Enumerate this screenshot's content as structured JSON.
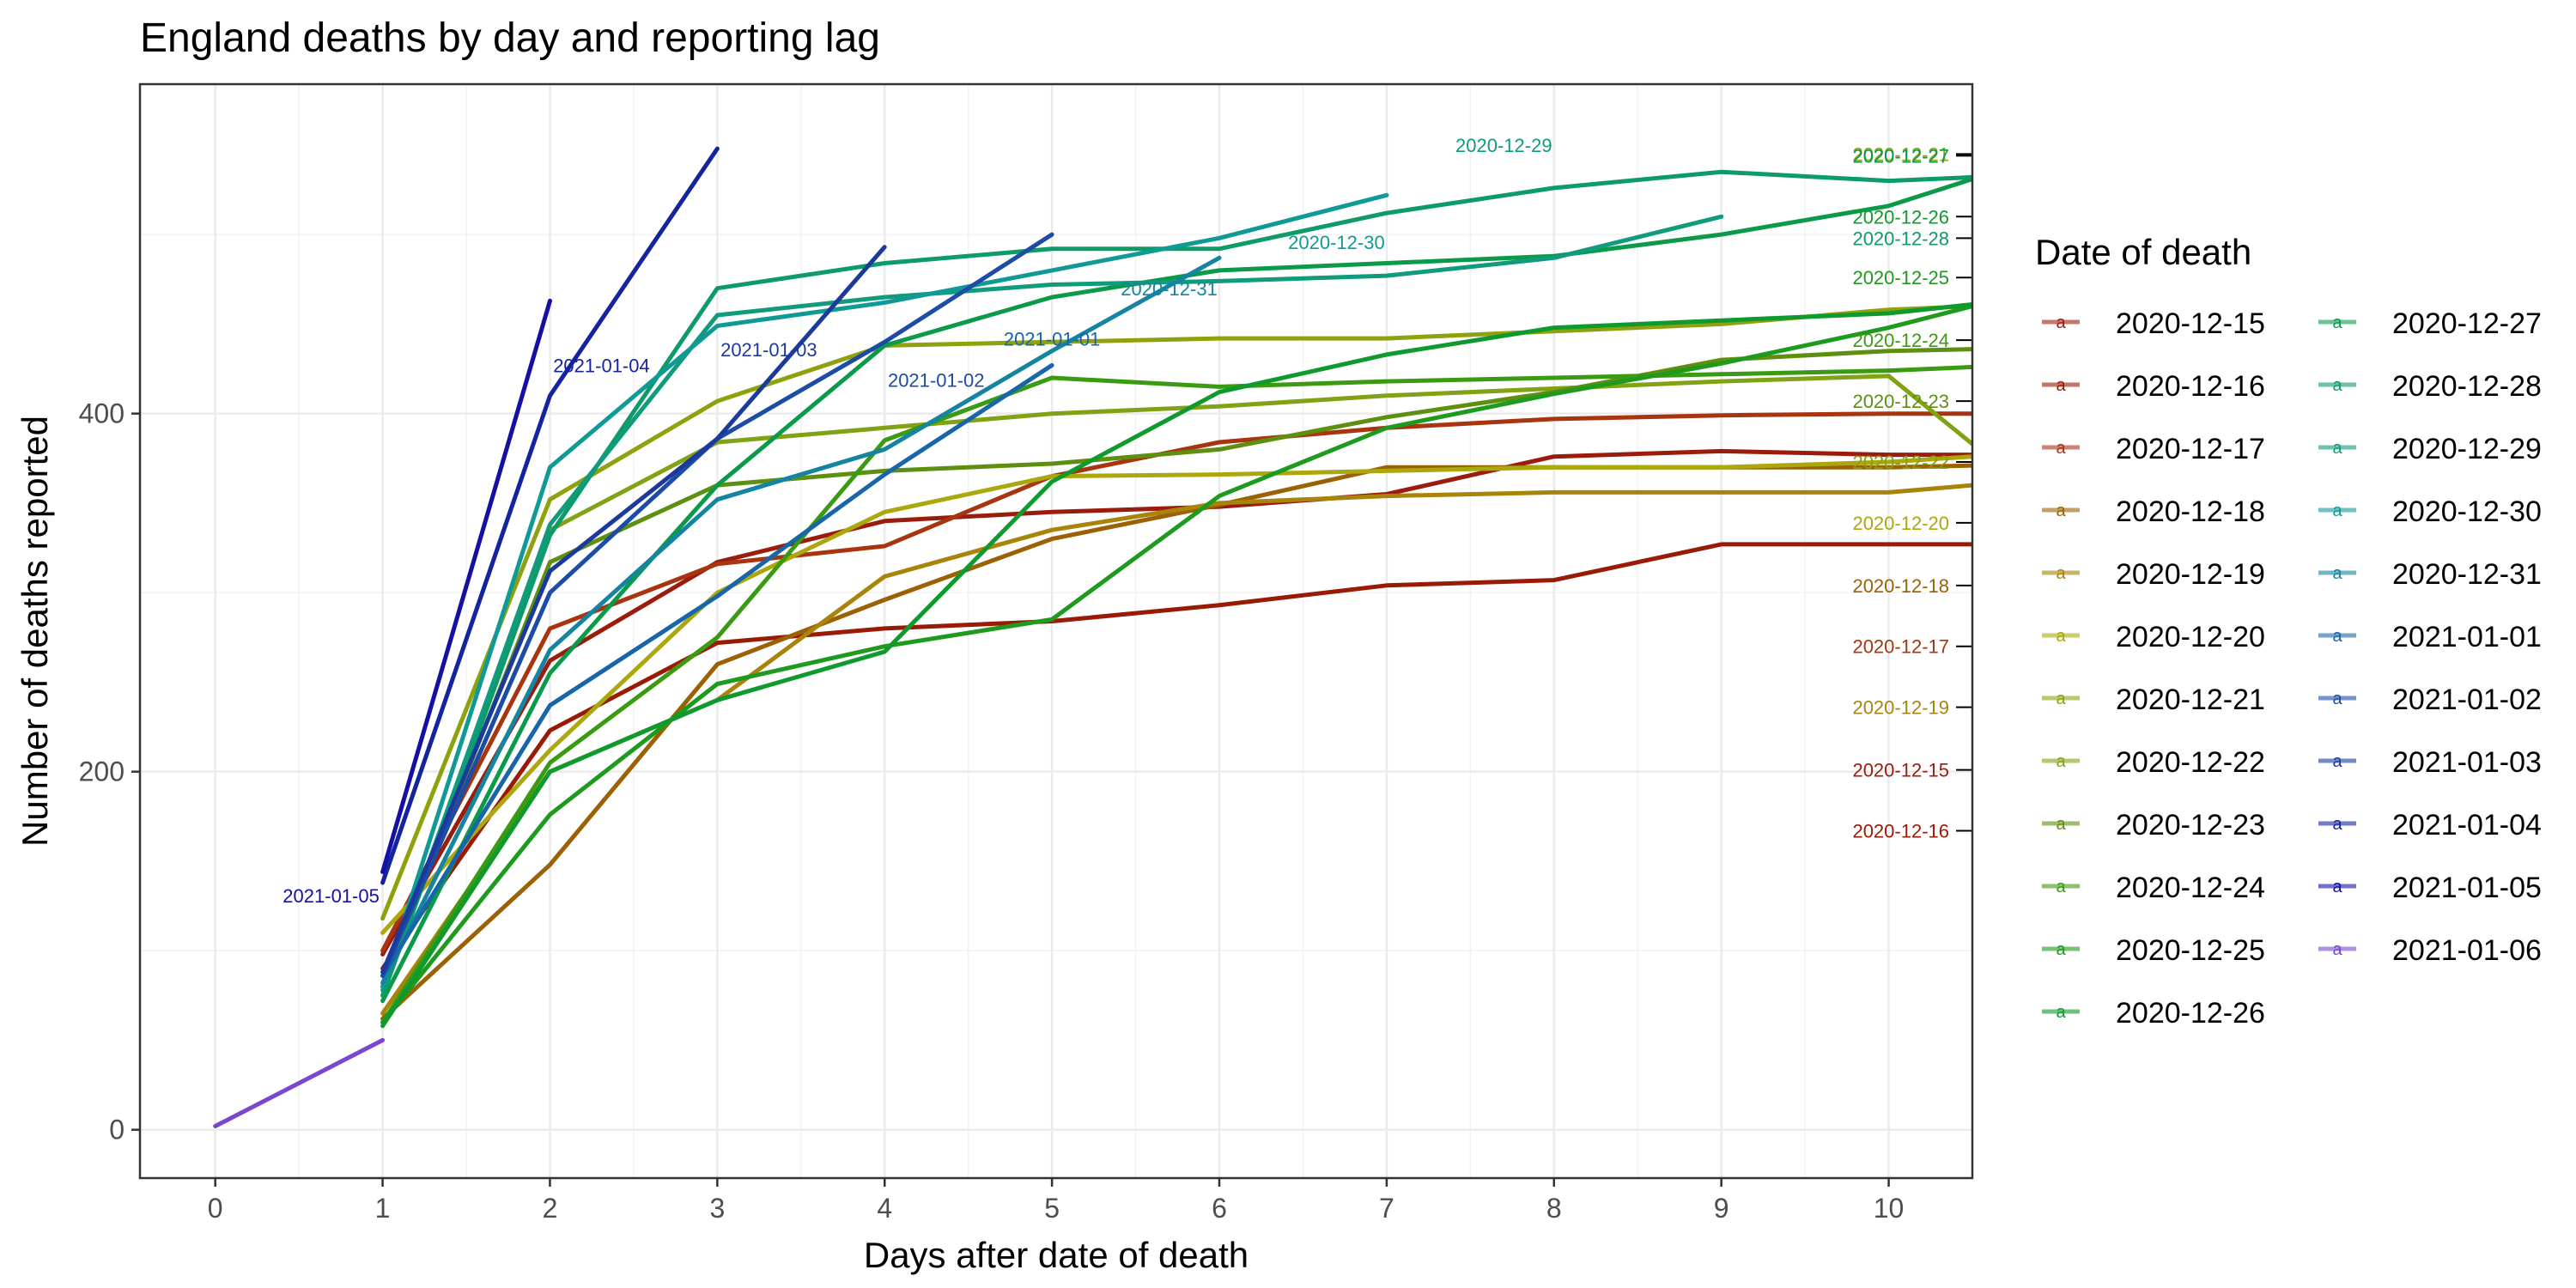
{
  "chart_data": {
    "type": "line",
    "title": "England deaths by day and reporting lag",
    "xlabel": "Days after date of death",
    "ylabel": "Number of deaths reported",
    "xlim": [
      -0.45,
      10.5
    ],
    "ylim": [
      -27,
      584
    ],
    "x_ticks": [
      0,
      1,
      2,
      3,
      4,
      5,
      6,
      7,
      8,
      9,
      10
    ],
    "y_ticks": [
      0,
      200,
      400
    ],
    "grid": true,
    "legend": {
      "title": "Date of death",
      "placement": "right",
      "key_glyph": "a"
    },
    "series": [
      {
        "name": "2020-12-15",
        "color": "#9B1C0C",
        "x": [
          1,
          2,
          3,
          4,
          5,
          6,
          7,
          8,
          9,
          10,
          10.5
        ],
        "values": [
          98,
          262,
          317,
          340,
          345,
          348,
          355,
          376,
          379,
          377,
          377
        ],
        "label_y": 201
      },
      {
        "name": "2020-12-16",
        "color": "#991A05",
        "x": [
          1,
          2,
          3,
          4,
          5,
          6,
          7,
          8,
          9,
          10,
          10.5
        ],
        "values": [
          90,
          223,
          272,
          280,
          284,
          293,
          304,
          307,
          327,
          327,
          327
        ],
        "label_y": 167
      },
      {
        "name": "2020-12-17",
        "color": "#A83410",
        "x": [
          1,
          2,
          3,
          4,
          5,
          6,
          7,
          8,
          9,
          10,
          10.5
        ],
        "values": [
          100,
          280,
          316,
          326,
          365,
          384,
          392,
          397,
          399,
          400,
          400
        ],
        "label_y": 270
      },
      {
        "name": "2020-12-18",
        "color": "#9C6105",
        "x": [
          1,
          2,
          3,
          4,
          5,
          6,
          7,
          8,
          9,
          10,
          10.5
        ],
        "values": [
          62,
          148,
          260,
          296,
          330,
          349,
          370,
          370,
          370,
          370,
          371
        ],
        "label_y": 304
      },
      {
        "name": "2020-12-19",
        "color": "#A8840A",
        "x": [
          1,
          2,
          3,
          4,
          5,
          6,
          7,
          8,
          9,
          10,
          10.5
        ],
        "values": [
          65,
          200,
          240,
          309,
          335,
          350,
          354,
          356,
          356,
          356,
          360
        ],
        "label_y": 236
      },
      {
        "name": "2020-12-20",
        "color": "#AAA80C",
        "x": [
          1,
          2,
          3,
          4,
          5,
          6,
          7,
          8,
          9,
          10,
          10.5
        ],
        "values": [
          110,
          212,
          300,
          345,
          365,
          366,
          368,
          370,
          370,
          373,
          376
        ],
        "label_y": 339
      },
      {
        "name": "2020-12-21",
        "color": "#8FA10D",
        "x": [
          1,
          2,
          3,
          4,
          5,
          6,
          7,
          8,
          9,
          10,
          10.5
        ],
        "values": [
          118,
          352,
          407,
          438,
          440,
          442,
          442,
          446,
          450,
          458,
          460
        ],
        "label_y": 545
      },
      {
        "name": "2020-12-22",
        "color": "#81A214",
        "x": [
          1,
          2,
          3,
          4,
          5,
          6,
          7,
          8,
          9,
          10,
          10.5
        ],
        "values": [
          75,
          335,
          384,
          392,
          400,
          404,
          410,
          414,
          418,
          421,
          383
        ],
        "label_y": 373
      },
      {
        "name": "2020-12-23",
        "color": "#5D8F10",
        "x": [
          1,
          2,
          3,
          4,
          5,
          6,
          7,
          8,
          9,
          10,
          10.5
        ],
        "values": [
          80,
          317,
          360,
          368,
          372,
          380,
          398,
          412,
          430,
          435,
          436
        ],
        "label_y": 407
      },
      {
        "name": "2020-12-24",
        "color": "#3A9A12",
        "x": [
          1,
          2,
          3,
          4,
          5,
          6,
          7,
          8,
          9,
          10,
          10.5
        ],
        "values": [
          60,
          205,
          275,
          385,
          420,
          415,
          418,
          420,
          422,
          424,
          426
        ],
        "label_y": 441
      },
      {
        "name": "2020-12-25",
        "color": "#1E9A1E",
        "x": [
          1,
          2,
          3,
          4,
          5,
          6,
          7,
          8,
          9,
          10,
          10.5
        ],
        "values": [
          60,
          176,
          249,
          270,
          285,
          354,
          392,
          411,
          428,
          448,
          460
        ],
        "label_y": 476
      },
      {
        "name": "2020-12-26",
        "color": "#0E9A2C",
        "x": [
          1,
          2,
          3,
          4,
          5,
          6,
          7,
          8,
          9,
          10,
          10.5
        ],
        "values": [
          58,
          200,
          240,
          267,
          362,
          412,
          433,
          448,
          452,
          456,
          461
        ],
        "label_y": 510
      },
      {
        "name": "2020-12-27",
        "color": "#0A9A4A",
        "x": [
          1,
          2,
          3,
          4,
          5,
          6,
          7,
          8,
          9,
          10,
          10.5
        ],
        "values": [
          72,
          255,
          360,
          438,
          465,
          480,
          484,
          488,
          500,
          516,
          531
        ],
        "label_y": 544
      },
      {
        "name": "2020-12-28",
        "color": "#0D9B68",
        "x": [
          1,
          2,
          3,
          4,
          5,
          6,
          7,
          8,
          9,
          10,
          10.5
        ],
        "values": [
          75,
          332,
          470,
          484,
          492,
          492,
          512,
          526,
          535,
          530,
          532
        ],
        "label_y": 498
      },
      {
        "name": "2020-12-29",
        "color": "#109B7C",
        "x": [
          1,
          2,
          3,
          4,
          5,
          6,
          7,
          8,
          9
        ],
        "values": [
          78,
          338,
          455,
          465,
          472,
          474,
          477,
          487,
          510
        ],
        "label_y": 546
      },
      {
        "name": "2020-12-30",
        "color": "#0F9A96",
        "x": [
          1,
          2,
          3,
          4,
          5,
          6,
          7
        ],
        "values": [
          80,
          370,
          449,
          462,
          480,
          498,
          522
        ],
        "label_y": 492
      },
      {
        "name": "2020-12-31",
        "color": "#1484A0",
        "x": [
          1,
          2,
          3,
          4,
          5,
          6
        ],
        "values": [
          82,
          268,
          352,
          380,
          435,
          487
        ],
        "label_y": 466
      },
      {
        "name": "2021-01-01",
        "color": "#1865A8",
        "x": [
          1,
          2,
          3,
          4,
          5
        ],
        "values": [
          86,
          237,
          298,
          366,
          427
        ],
        "label_y": 438
      },
      {
        "name": "2021-01-02",
        "color": "#1C4CA6",
        "x": [
          1,
          2,
          3,
          4,
          5
        ],
        "values": [
          86,
          300,
          386,
          440,
          500
        ],
        "label_y": 415
      },
      {
        "name": "2021-01-03",
        "color": "#1B3A9C",
        "x": [
          1,
          2,
          3,
          4
        ],
        "values": [
          88,
          312,
          386,
          493
        ],
        "label_y": 432
      },
      {
        "name": "2021-01-04",
        "color": "#1424A0",
        "x": [
          1,
          2,
          3
        ],
        "values": [
          138,
          410,
          548
        ],
        "label_y": 423
      },
      {
        "name": "2021-01-05",
        "color": "#1410A4",
        "x": [
          1,
          2
        ],
        "values": [
          144,
          463
        ],
        "label_y": 127
      },
      {
        "name": "2021-01-06",
        "color": "#7A47D0",
        "x": [
          0,
          1
        ],
        "values": [
          2,
          50
        ],
        "label_y": null
      }
    ]
  }
}
